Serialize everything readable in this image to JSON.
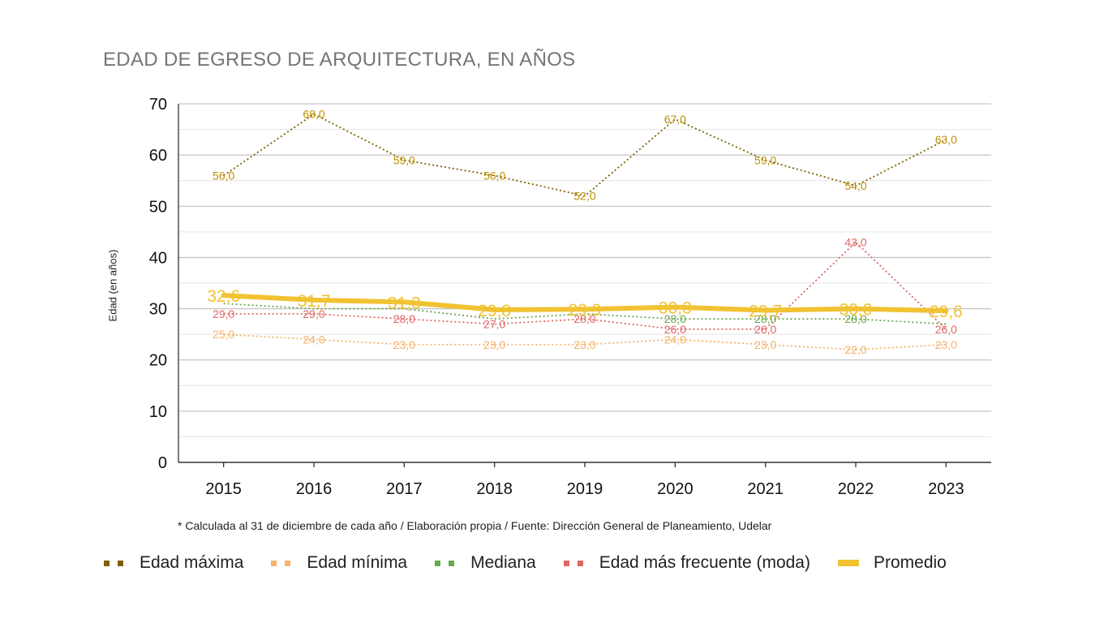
{
  "page": {
    "footnote": "* Calculada al 31 de diciembre de cada año / Elaboración propia / Fuente: Dirección General de Planeamiento, Udelar"
  },
  "chart_data": {
    "type": "line",
    "title": "EDAD DE EGRESO DE ARQUITECTURA, EN AÑOS",
    "xlabel": "",
    "ylabel": "Edad (en años)",
    "ylim": [
      0,
      70
    ],
    "yticks": [
      0,
      10,
      20,
      30,
      40,
      50,
      60,
      70
    ],
    "grid": true,
    "legend_position": "bottom",
    "categories": [
      "2015",
      "2016",
      "2017",
      "2018",
      "2019",
      "2020",
      "2021",
      "2022",
      "2023"
    ],
    "series": [
      {
        "name": "Edad máxima",
        "style": "dotted",
        "color": "#7f6000",
        "label_color": "#bf9000",
        "values": [
          56,
          68,
          59,
          56,
          52,
          67,
          59,
          54,
          63
        ],
        "labels": [
          "56,0",
          "68,0",
          "59,0",
          "56,0",
          "52,0",
          "67,0",
          "59,0",
          "54,0",
          "63,0"
        ]
      },
      {
        "name": "Edad mínima",
        "style": "dotted",
        "color": "#f6b26b",
        "label_color": "#f6b26b",
        "values": [
          25,
          24,
          23,
          23,
          23,
          24,
          23,
          22,
          23
        ],
        "labels": [
          "25,0",
          "24,0",
          "23,0",
          "23,0",
          "23,0",
          "24,0",
          "23,0",
          "22,0",
          "23,0"
        ]
      },
      {
        "name": "Mediana",
        "style": "dotted",
        "color": "#6aa84f",
        "label_color": "#6aa84f",
        "values": [
          31,
          30,
          30,
          28,
          29,
          28,
          28,
          28,
          27
        ],
        "labels": [
          "",
          "",
          "",
          "",
          "",
          "28,0",
          "28,0",
          "28,0",
          ""
        ]
      },
      {
        "name": "Edad más frecuente (moda)",
        "style": "dotted",
        "color": "#e06666",
        "label_color": "#e06666",
        "values": [
          29,
          29,
          28,
          27,
          28,
          26,
          26,
          43,
          26
        ],
        "labels": [
          "29,0",
          "29,0",
          "28,0",
          "27,0",
          "28,0",
          "26,0",
          "26,0",
          "43,0",
          "26,0"
        ]
      },
      {
        "name": "Promedio",
        "style": "solid",
        "color": "#f1c232",
        "label_color": "#f1c232",
        "values": [
          32.6,
          31.7,
          31.3,
          29.8,
          29.9,
          30.3,
          29.7,
          30.0,
          29.6
        ],
        "labels": [
          "32,6",
          "31,7",
          "31,3",
          "29,8",
          "29,9",
          "30,3",
          "29,7",
          "30,0",
          "29,6"
        ]
      }
    ]
  }
}
